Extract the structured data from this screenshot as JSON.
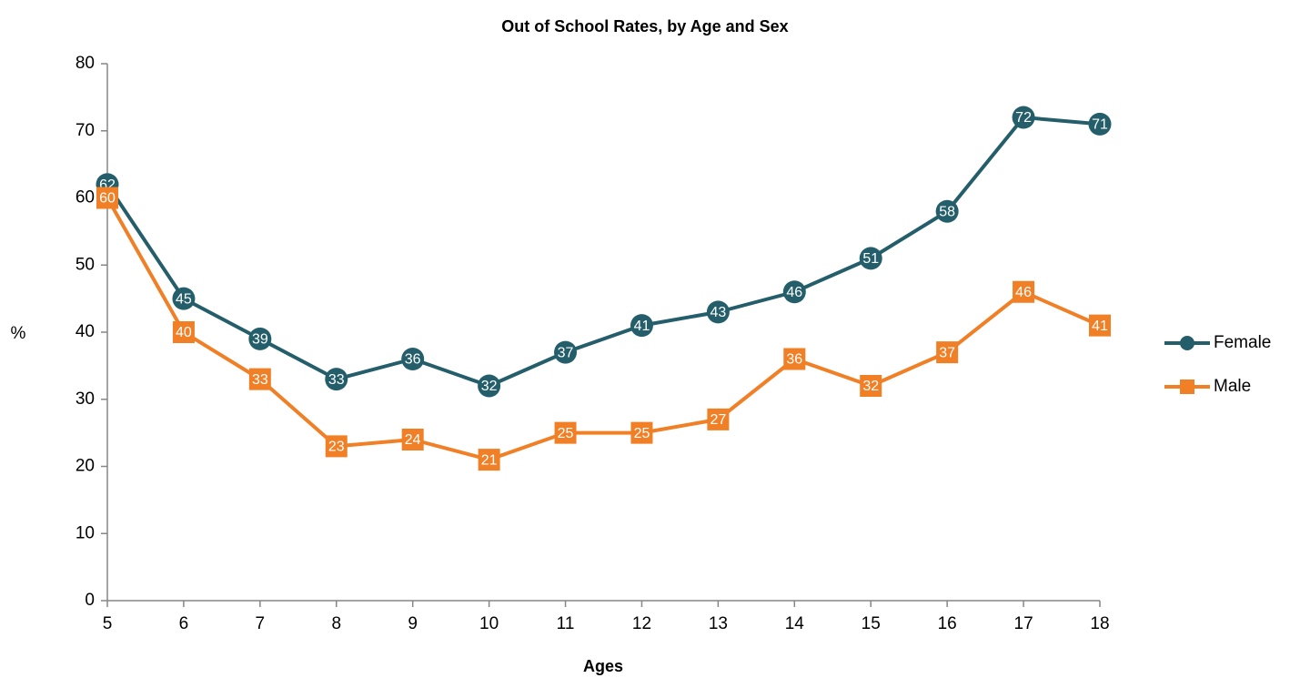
{
  "chart_data": {
    "type": "line",
    "title": "Out of School Rates, by Age and Sex",
    "x_label": "Ages",
    "y_label": "%",
    "x": [
      5,
      6,
      7,
      8,
      9,
      10,
      11,
      12,
      13,
      14,
      15,
      16,
      17,
      18
    ],
    "series": [
      {
        "name": "Female",
        "color": "#255e6b",
        "marker": "circle",
        "values": [
          62,
          45,
          39,
          33,
          36,
          32,
          37,
          41,
          43,
          46,
          51,
          58,
          72,
          71
        ]
      },
      {
        "name": "Male",
        "color": "#f07f26",
        "marker": "square",
        "values": [
          60,
          40,
          33,
          23,
          24,
          21,
          25,
          25,
          27,
          36,
          32,
          37,
          46,
          41
        ]
      }
    ],
    "xlim": [
      5,
      18
    ],
    "xticks": [
      5,
      6,
      7,
      8,
      9,
      10,
      11,
      12,
      13,
      14,
      15,
      16,
      17,
      18
    ],
    "ylim": [
      0,
      80
    ],
    "yticks": [
      0,
      10,
      20,
      30,
      40,
      50,
      60,
      70,
      80
    ],
    "grid": false,
    "legend": "right"
  }
}
